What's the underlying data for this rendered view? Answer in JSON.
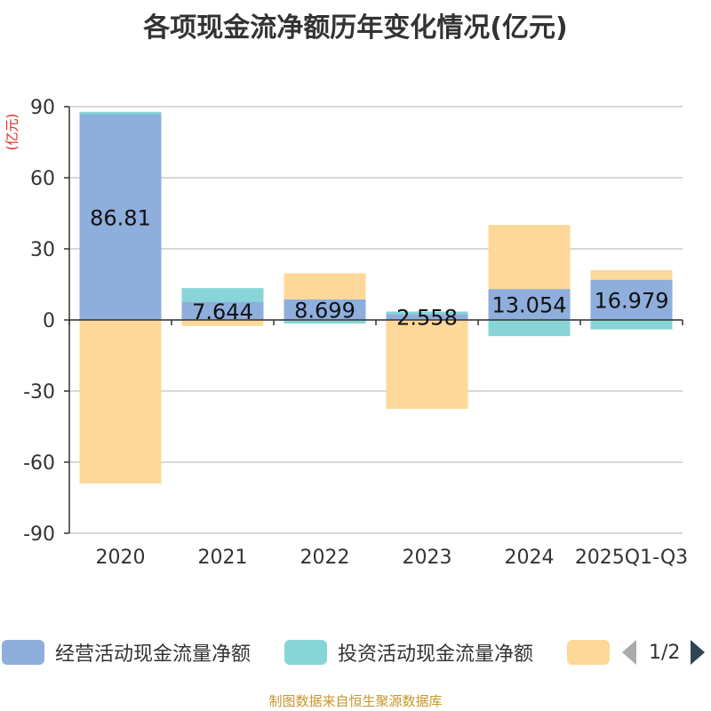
{
  "title": "各项现金流净额历年变化情况(亿元)",
  "unit_label": "(亿元)",
  "source": "制图数据来自恒生聚源数据库",
  "legend": {
    "items": [
      {
        "name": "经营活动现金流量净额",
        "color": "#8eaedc"
      },
      {
        "name": "投资活动现金流量净额",
        "color": "#88d5d7"
      },
      {
        "name": "",
        "color": "#fdd898"
      }
    ],
    "pager": "1/2"
  },
  "chart_data": {
    "type": "bar",
    "stacked": true,
    "categories": [
      "2020",
      "2021",
      "2022",
      "2023",
      "2024",
      "2025Q1-Q3"
    ],
    "ylim": [
      -90,
      90
    ],
    "yticks": [
      90,
      60,
      30,
      0,
      -30,
      -60,
      -90
    ],
    "grid": true,
    "legend_position": "bottom",
    "series": [
      {
        "name": "经营活动现金流量净额",
        "color": "#8eaedc",
        "values": [
          86.81,
          7.644,
          8.699,
          2.558,
          13.054,
          16.979
        ],
        "labels": [
          "86.81",
          "7.644",
          "8.699",
          "2.558",
          "13.054",
          "16.979"
        ]
      },
      {
        "name": "投资活动现金流量净额",
        "color": "#88d5d7",
        "values": [
          1.0,
          5.8,
          -1.5,
          1.0,
          -6.8,
          -4.0
        ]
      },
      {
        "name": "",
        "color": "#fdd898",
        "values": [
          -69.0,
          -2.5,
          11.0,
          -37.5,
          27.0,
          4.0
        ]
      }
    ]
  }
}
